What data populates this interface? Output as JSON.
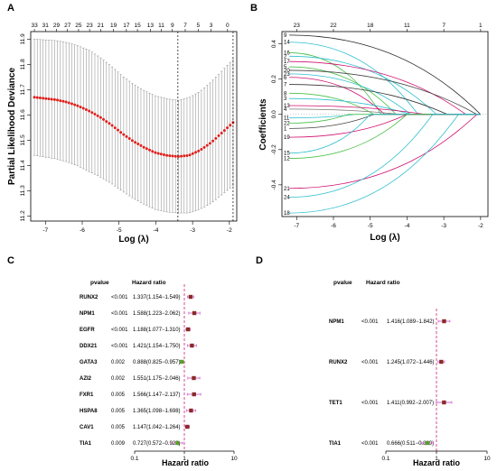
{
  "panels": [
    {
      "id": "A"
    },
    {
      "id": "B"
    },
    {
      "id": "C"
    },
    {
      "id": "D"
    }
  ],
  "chart_data": [
    {
      "panel": "A",
      "type": "line",
      "xlabel": "Log (λ)",
      "ylabel": "Partial Likelihood Deviance",
      "xlim": [
        -7.4,
        -1.8
      ],
      "ylim": [
        11.18,
        11.93
      ],
      "xticks": [
        -7,
        -6,
        -5,
        -4,
        -3,
        -2
      ],
      "yticks": [
        11.2,
        11.3,
        11.4,
        11.5,
        11.6,
        11.7,
        11.8,
        11.9
      ],
      "top_axis_labels": [
        "33",
        "31",
        "29",
        "27",
        "25",
        "23",
        "21",
        "19",
        "17",
        "15",
        "13",
        "11",
        "9",
        "7",
        "5",
        "3",
        "0"
      ],
      "top_axis_x": [
        -7.3,
        -7.0,
        -6.7,
        -6.4,
        -6.1,
        -5.8,
        -5.5,
        -5.15,
        -4.8,
        -4.5,
        -4.15,
        -3.85,
        -3.55,
        -3.2,
        -2.85,
        -2.5,
        -2.05
      ],
      "vlines": [
        -3.4,
        -1.9
      ],
      "curve": {
        "x": [
          -7.3,
          -7.0,
          -6.7,
          -6.4,
          -6.1,
          -5.8,
          -5.5,
          -5.2,
          -4.9,
          -4.6,
          -4.3,
          -4.0,
          -3.7,
          -3.4,
          -3.1,
          -2.8,
          -2.5,
          -2.2,
          -1.9
        ],
        "y": [
          11.67,
          11.665,
          11.66,
          11.65,
          11.635,
          11.615,
          11.59,
          11.56,
          11.525,
          11.495,
          11.47,
          11.45,
          11.44,
          11.435,
          11.44,
          11.46,
          11.49,
          11.53,
          11.57
        ],
        "err": [
          0.23,
          0.232,
          0.234,
          0.236,
          0.238,
          0.24,
          0.236,
          0.232,
          0.228,
          0.226,
          0.225,
          0.225,
          0.224,
          0.223,
          0.228,
          0.233,
          0.24,
          0.245,
          0.25
        ]
      }
    },
    {
      "panel": "B",
      "type": "line",
      "xlabel": "Log (λ)",
      "ylabel": "Coefficients",
      "xlim": [
        -7.4,
        -1.8
      ],
      "ylim": [
        -0.58,
        0.47
      ],
      "xticks": [
        -7,
        -6,
        -5,
        -4,
        -3,
        -2
      ],
      "yticks": [
        -0.4,
        -0.2,
        0.0,
        0.2,
        0.4
      ],
      "top_axis_labels": [
        "23",
        "22",
        "18",
        "11",
        "7",
        "1"
      ],
      "top_axis_x": [
        -7.0,
        -6.0,
        -5.0,
        -4.0,
        -3.0,
        -2.0
      ],
      "series": [
        {
          "name": "9",
          "color": "#222222",
          "y0": 0.45,
          "x_end": -2.0
        },
        {
          "name": "14",
          "color": "#2fbfd0",
          "y0": 0.41,
          "x_end": -3.7
        },
        {
          "name": "16",
          "color": "#48c048",
          "y0": 0.35,
          "x_end": -4.7
        },
        {
          "name": "2",
          "color": "#2fbfd0",
          "y0": 0.33,
          "x_end": -3.2
        },
        {
          "name": "17",
          "color": "#d01070",
          "y0": 0.3,
          "x_end": -2.4
        },
        {
          "name": "5",
          "color": "#48c048",
          "y0": 0.27,
          "x_end": -4.3
        },
        {
          "name": "20",
          "color": "#444444",
          "y0": 0.25,
          "x_end": -2.1
        },
        {
          "name": "23",
          "color": "#2fbfd0",
          "y0": 0.23,
          "x_end": -3.9
        },
        {
          "name": "6",
          "color": "#d01070",
          "y0": 0.21,
          "x_end": -4.6
        },
        {
          "name": "7",
          "color": "#333333",
          "y0": 0.17,
          "x_end": -2.9
        },
        {
          "name": "8",
          "color": "#48c048",
          "y0": 0.12,
          "x_end": -4.9
        },
        {
          "name": "3",
          "color": "#2fbfd0",
          "y0": 0.09,
          "x_end": -3.9
        },
        {
          "name": "13",
          "color": "#d01070",
          "y0": 0.05,
          "x_end": -3.5
        },
        {
          "name": "4",
          "color": "#777777",
          "y0": 0.03,
          "x_end": -4.2
        },
        {
          "name": "11",
          "color": "#2fbfd0",
          "y0": -0.02,
          "x_end": -5.4
        },
        {
          "name": "22",
          "color": "#48c048",
          "y0": -0.05,
          "x_end": -5.6
        },
        {
          "name": "1",
          "color": "#444444",
          "y0": -0.08,
          "x_end": -4.9
        },
        {
          "name": "19",
          "color": "#d01070",
          "y0": -0.13,
          "x_end": -4.0
        },
        {
          "name": "15",
          "color": "#2fbfd0",
          "y0": -0.22,
          "x_end": -5.0
        },
        {
          "name": "12",
          "color": "#48c048",
          "y0": -0.25,
          "x_end": -4.0
        },
        {
          "name": "21",
          "color": "#d01070",
          "y0": -0.42,
          "x_end": -2.1
        },
        {
          "name": "24",
          "color": "#2fbfd0",
          "y0": -0.47,
          "x_end": -3.3
        },
        {
          "name": "18",
          "color": "#2fbfd0",
          "y0": -0.56,
          "x_end": -2.6
        }
      ]
    },
    {
      "panel": "C",
      "type": "forest",
      "col_pvalue": "pvalue",
      "col_hr": "Hazard ratio",
      "xlabel": "Hazard ratio",
      "xscale": "log",
      "xticks": [
        0.1,
        1,
        10
      ],
      "xtick_labels": [
        "0.1",
        "1",
        "10"
      ],
      "rows": [
        {
          "gene": "RUNX2",
          "pvalue": "<0.001",
          "hr_text": "1.337(1.154−1.549)",
          "hr": 1.337,
          "lo": 1.154,
          "hi": 1.549
        },
        {
          "gene": "NPM1",
          "pvalue": "<0.001",
          "hr_text": "1.588(1.223−2.062)",
          "hr": 1.588,
          "lo": 1.223,
          "hi": 2.062
        },
        {
          "gene": "EGFR",
          "pvalue": "<0.001",
          "hr_text": "1.188(1.077−1.310)",
          "hr": 1.188,
          "lo": 1.077,
          "hi": 1.31
        },
        {
          "gene": "DDX21",
          "pvalue": "<0.001",
          "hr_text": "1.421(1.154−1.750)",
          "hr": 1.421,
          "lo": 1.154,
          "hi": 1.75
        },
        {
          "gene": "GATA3",
          "pvalue": "0.002",
          "hr_text": "0.888(0.825−0.957)",
          "hr": 0.888,
          "lo": 0.825,
          "hi": 0.957
        },
        {
          "gene": "AZI2",
          "pvalue": "0.002",
          "hr_text": "1.551(1.175−2.046)",
          "hr": 1.551,
          "lo": 1.175,
          "hi": 2.046
        },
        {
          "gene": "FXR1",
          "pvalue": "0.005",
          "hr_text": "1.566(1.147−2.137)",
          "hr": 1.566,
          "lo": 1.147,
          "hi": 2.137
        },
        {
          "gene": "HSPA8",
          "pvalue": "0.005",
          "hr_text": "1.365(1.098−1.698)",
          "hr": 1.365,
          "lo": 1.098,
          "hi": 1.698
        },
        {
          "gene": "CAV1",
          "pvalue": "0.005",
          "hr_text": "1.147(1.042−1.264)",
          "hr": 1.147,
          "lo": 1.042,
          "hi": 1.264
        },
        {
          "gene": "TIA1",
          "pvalue": "0.009",
          "hr_text": "0.727(0.572−0.923)",
          "hr": 0.727,
          "lo": 0.572,
          "hi": 0.923
        }
      ]
    },
    {
      "panel": "D",
      "type": "forest",
      "col_pvalue": "pvalue",
      "col_hr": "Hazard ratio",
      "xlabel": "Hazard ratio",
      "xscale": "log",
      "xticks": [
        0.1,
        1,
        10
      ],
      "xtick_labels": [
        "0.1",
        "1",
        "10"
      ],
      "rows": [
        {
          "gene": "NPM1",
          "pvalue": "<0.001",
          "hr_text": "1.416(1.089−1.842)",
          "hr": 1.416,
          "lo": 1.089,
          "hi": 1.842
        },
        {
          "gene": "RUNX2",
          "pvalue": "<0.001",
          "hr_text": "1.245(1.072−1.446)",
          "hr": 1.245,
          "lo": 1.072,
          "hi": 1.446
        },
        {
          "gene": "TET1",
          "pvalue": "<0.001",
          "hr_text": "1.411(0.992−2.007)",
          "hr": 1.411,
          "lo": 0.992,
          "hi": 2.007
        },
        {
          "gene": "TIA1",
          "pvalue": "<0.001",
          "hr_text": "0.666(0.511−0.869)",
          "hr": 0.666,
          "lo": 0.511,
          "hi": 0.869
        }
      ]
    }
  ],
  "colors": {
    "dot_red": "#e0201c",
    "errbar_gray": "#9a9a9a",
    "hr_high": "#8b2a2a",
    "hr_low": "#5aa02c",
    "ci_line": "#cc66cc",
    "ref_line": "#cc2277"
  }
}
